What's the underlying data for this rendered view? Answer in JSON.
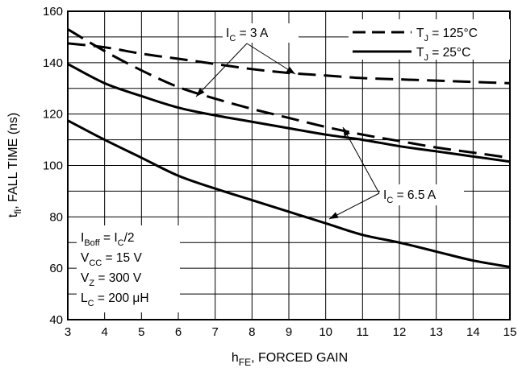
{
  "chart_data": {
    "type": "line",
    "xlabel": {
      "main": "h",
      "sub": "FE",
      "rest": ", FORCED GAIN"
    },
    "ylabel": {
      "main": "t",
      "sub": "fi",
      "rest": ", FALL TIME (ns)"
    },
    "xlim": [
      3,
      15
    ],
    "ylim": [
      40,
      160
    ],
    "xticks": [
      "3",
      "4",
      "5",
      "6",
      "7",
      "8",
      "9",
      "10",
      "11",
      "12",
      "13",
      "14",
      "15"
    ],
    "yticks": [
      "40",
      "60",
      "80",
      "100",
      "120",
      "140",
      "160"
    ],
    "grid": true,
    "legend": {
      "position": "top-right",
      "entries": [
        {
          "style": "dashed",
          "label_main": "T",
          "label_sub": "J",
          "label_rest": " = 125°C"
        },
        {
          "style": "solid",
          "label_main": "T",
          "label_sub": "J",
          "label_rest": " = 25°C"
        }
      ]
    },
    "annotations": {
      "ic_3a": {
        "main": "I",
        "sub": "C",
        "rest": " = 3 A"
      },
      "ic_6_5a": {
        "main": "I",
        "sub": "C",
        "rest": " = 6.5 A"
      }
    },
    "conditions": [
      {
        "parts": [
          {
            "t": "I"
          },
          {
            "t": "Boff",
            "sub": true
          },
          {
            "t": " = I"
          },
          {
            "t": "C",
            "sub": true
          },
          {
            "t": "/2"
          }
        ]
      },
      {
        "parts": [
          {
            "t": "V"
          },
          {
            "t": "CC",
            "sub": true
          },
          {
            "t": " = 15 V"
          }
        ]
      },
      {
        "parts": [
          {
            "t": "V"
          },
          {
            "t": "Z",
            "sub": true
          },
          {
            "t": " = 300 V"
          }
        ]
      },
      {
        "parts": [
          {
            "t": "L"
          },
          {
            "t": "C",
            "sub": true
          },
          {
            "t": " = 200 μH"
          }
        ]
      }
    ],
    "series": [
      {
        "current": "3 A",
        "temperature": "125°C",
        "style": "dashed",
        "x": [
          3,
          4,
          5,
          6,
          7,
          8,
          9,
          10,
          11,
          12,
          13,
          14,
          15
        ],
        "y": [
          147.5,
          146,
          143.5,
          141.5,
          139.5,
          137.5,
          136,
          135,
          134,
          133.5,
          133,
          132.5,
          132
        ]
      },
      {
        "current": "6.5 A",
        "temperature": "125°C",
        "style": "dashed",
        "x": [
          3,
          4,
          5,
          6,
          7,
          8,
          9,
          10,
          11,
          12,
          13,
          14,
          15
        ],
        "y": [
          153,
          144.5,
          137,
          130.5,
          126,
          122,
          118.5,
          115,
          112,
          109.5,
          107,
          105,
          103
        ]
      },
      {
        "current": "3 A",
        "temperature": "25°C",
        "style": "solid",
        "x": [
          3,
          4,
          5,
          6,
          7,
          8,
          9,
          10,
          11,
          12,
          13,
          14,
          15
        ],
        "y": [
          139.5,
          132,
          127,
          122.5,
          119.5,
          117,
          114.5,
          112,
          110,
          107.5,
          105.5,
          103.5,
          101.5
        ]
      },
      {
        "current": "6.5 A",
        "temperature": "25°C",
        "style": "solid",
        "x": [
          3,
          4,
          5,
          6,
          7,
          8,
          9,
          10,
          11,
          12,
          13,
          14,
          15
        ],
        "y": [
          117.5,
          110,
          103,
          96,
          91,
          86.5,
          82,
          77.5,
          73,
          70,
          66.5,
          63,
          60.5
        ]
      }
    ]
  }
}
